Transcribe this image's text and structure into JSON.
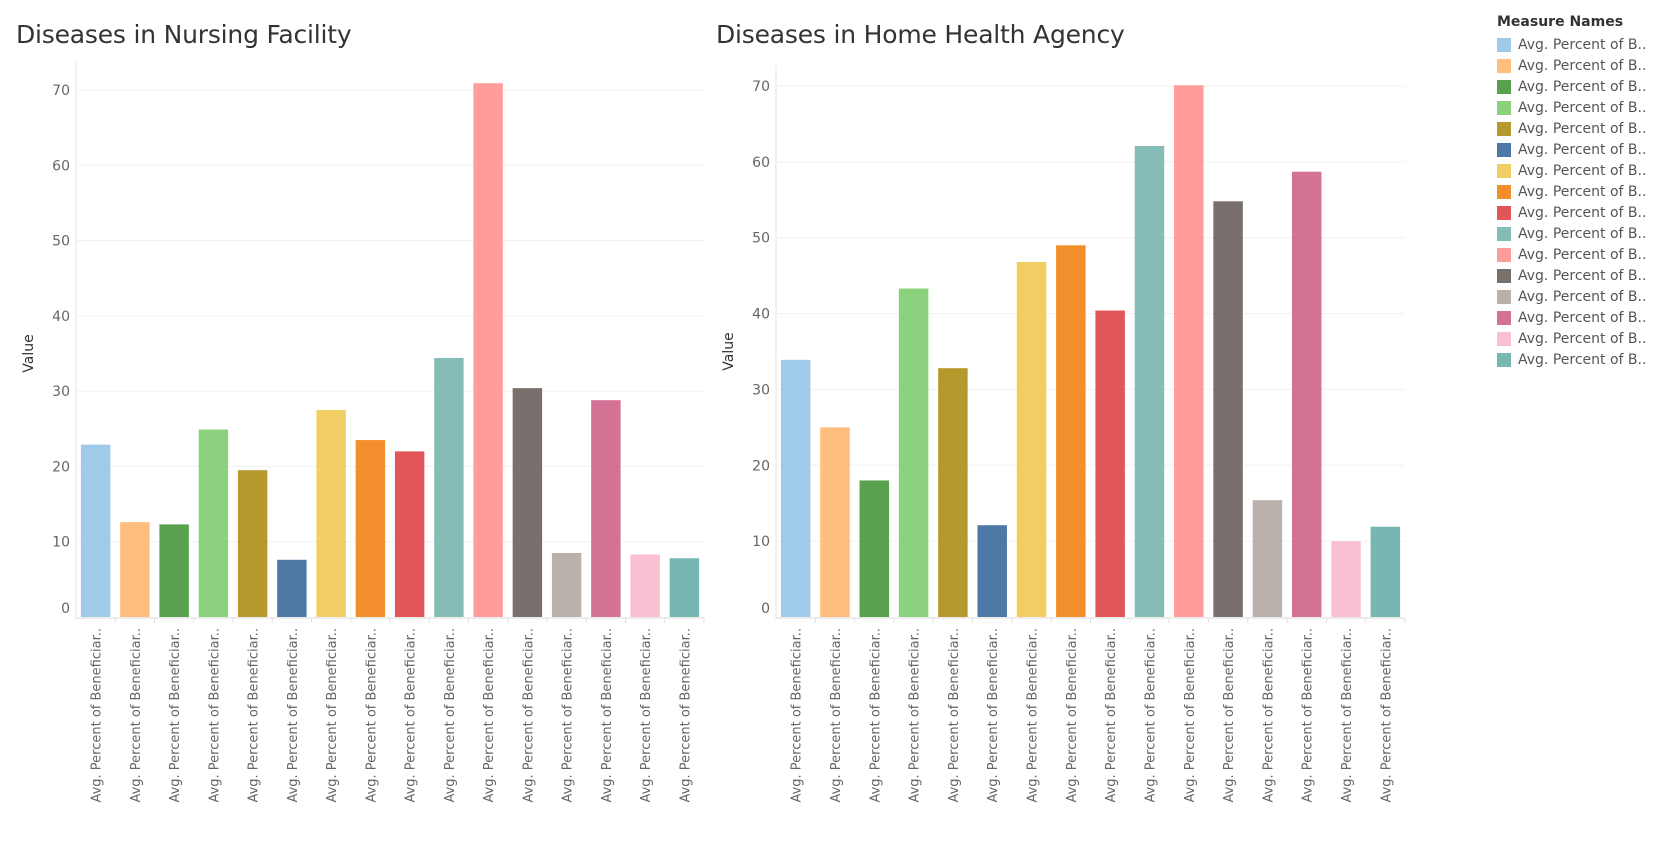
{
  "chart_data": [
    {
      "type": "bar",
      "title": "Diseases in Nursing Facility",
      "ylabel": "Value",
      "xlabel": "",
      "ylim": [
        0,
        72
      ],
      "yticks": [
        0,
        10,
        20,
        30,
        40,
        50,
        60,
        70
      ],
      "categories": [
        "Avg. Percent of Beneficiar..",
        "Avg. Percent of Beneficiar..",
        "Avg. Percent of Beneficiar..",
        "Avg. Percent of Beneficiar..",
        "Avg. Percent of Beneficiar..",
        "Avg. Percent of Beneficiar..",
        "Avg. Percent of Beneficiar..",
        "Avg. Percent of Beneficiar..",
        "Avg. Percent of Beneficiar..",
        "Avg. Percent of Beneficiar..",
        "Avg. Percent of Beneficiar..",
        "Avg. Percent of Beneficiar..",
        "Avg. Percent of Beneficiar..",
        "Avg. Percent of Beneficiar..",
        "Avg. Percent of Beneficiar..",
        "Avg. Percent of Beneficiar.."
      ],
      "values": [
        22.9,
        12.6,
        12.3,
        24.9,
        19.5,
        7.6,
        27.5,
        23.5,
        22.0,
        34.4,
        70.9,
        30.4,
        8.5,
        28.8,
        8.3,
        7.8
      ],
      "grid": true
    },
    {
      "type": "bar",
      "title": "Diseases in Home Health Agency",
      "ylabel": "Value",
      "xlabel": "",
      "ylim": [
        0,
        71
      ],
      "yticks": [
        0,
        10,
        20,
        30,
        40,
        50,
        60,
        70
      ],
      "categories": [
        "Avg. Percent of Beneficiar..",
        "Avg. Percent of Beneficiar..",
        "Avg. Percent of Beneficiar..",
        "Avg. Percent of Beneficiar..",
        "Avg. Percent of Beneficiar..",
        "Avg. Percent of Beneficiar..",
        "Avg. Percent of Beneficiar..",
        "Avg. Percent of Beneficiar..",
        "Avg. Percent of Beneficiar..",
        "Avg. Percent of Beneficiar..",
        "Avg. Percent of Beneficiar..",
        "Avg. Percent of Beneficiar..",
        "Avg. Percent of Beneficiar..",
        "Avg. Percent of Beneficiar..",
        "Avg. Percent of Beneficiar..",
        "Avg. Percent of Beneficiar.."
      ],
      "values": [
        33.9,
        25.0,
        18.0,
        43.3,
        32.8,
        12.1,
        46.8,
        49.0,
        40.4,
        62.1,
        70.1,
        54.8,
        15.4,
        58.7,
        10.0,
        11.9
      ],
      "grid": true
    }
  ],
  "legend": {
    "title": "Measure Names",
    "items": [
      {
        "label": "Avg. Percent of B..",
        "color": "#a0cbe8"
      },
      {
        "label": "Avg. Percent of B..",
        "color": "#ffbe7d"
      },
      {
        "label": "Avg. Percent of B..",
        "color": "#59a14f"
      },
      {
        "label": "Avg. Percent of B..",
        "color": "#8cd17d"
      },
      {
        "label": "Avg. Percent of B..",
        "color": "#b6992d"
      },
      {
        "label": "Avg. Percent of B..",
        "color": "#4e79a7"
      },
      {
        "label": "Avg. Percent of B..",
        "color": "#f1ce63"
      },
      {
        "label": "Avg. Percent of B..",
        "color": "#f28e2b"
      },
      {
        "label": "Avg. Percent of B..",
        "color": "#e15759"
      },
      {
        "label": "Avg. Percent of B..",
        "color": "#86bcb6"
      },
      {
        "label": "Avg. Percent of B..",
        "color": "#ff9d9a"
      },
      {
        "label": "Avg. Percent of B..",
        "color": "#79706e"
      },
      {
        "label": "Avg. Percent of B..",
        "color": "#bab0ac"
      },
      {
        "label": "Avg. Percent of B..",
        "color": "#d37295"
      },
      {
        "label": "Avg. Percent of B..",
        "color": "#fabfd2"
      },
      {
        "label": "Avg. Percent of B..",
        "color": "#76b7b2"
      }
    ]
  }
}
